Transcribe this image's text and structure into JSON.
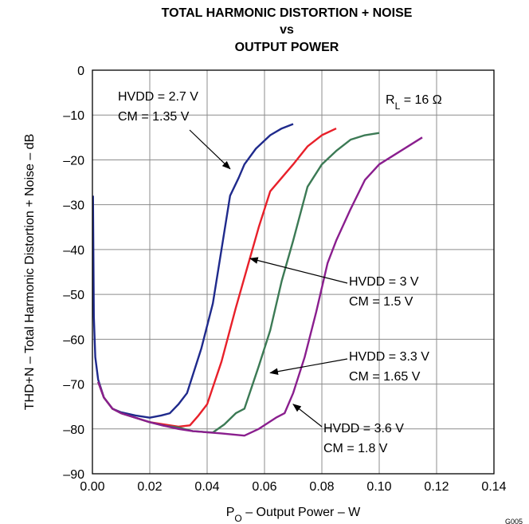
{
  "chart_data": {
    "type": "line",
    "title": [
      "TOTAL HARMONIC DISTORTION + NOISE",
      "vs",
      "OUTPUT POWER"
    ],
    "xlabel": {
      "main": "P",
      "sub": "O",
      "rest": " – Output Power – W"
    },
    "ylabel": "THD+N – Total Harmonic Distortion + Noise – dB",
    "xlim": [
      0,
      0.14
    ],
    "ylim": [
      -90,
      0
    ],
    "x_ticks": [
      0,
      0.02,
      0.04,
      0.06,
      0.08,
      0.1,
      0.12,
      0.14
    ],
    "x_tick_labels": [
      "0.00",
      "0.02",
      "0.04",
      "0.06",
      "0.08",
      "0.10",
      "0.12",
      "0.14"
    ],
    "y_ticks": [
      0,
      -10,
      -20,
      -30,
      -40,
      -50,
      -60,
      -70,
      -80,
      -90
    ],
    "y_tick_labels": [
      "0",
      "–10",
      "–20",
      "–30",
      "–40",
      "–50",
      "–60",
      "–70",
      "–80",
      "–90"
    ],
    "grid": true,
    "rl_label": {
      "main": "R",
      "sub": "L",
      "rest": " = 16 Ω"
    },
    "series": [
      {
        "name": "HVDD = 2.7 V, CM = 1.35 V",
        "color": "#1f2a8c",
        "points": [
          [
            0.0002,
            -28
          ],
          [
            0.0005,
            -55
          ],
          [
            0.001,
            -64
          ],
          [
            0.002,
            -69
          ],
          [
            0.004,
            -73
          ],
          [
            0.007,
            -75.5
          ],
          [
            0.01,
            -76.3
          ],
          [
            0.015,
            -77
          ],
          [
            0.02,
            -77.5
          ],
          [
            0.024,
            -77
          ],
          [
            0.027,
            -76.5
          ],
          [
            0.03,
            -74.5
          ],
          [
            0.033,
            -72
          ],
          [
            0.038,
            -62
          ],
          [
            0.042,
            -52
          ],
          [
            0.045,
            -40
          ],
          [
            0.048,
            -28
          ],
          [
            0.051,
            -24
          ],
          [
            0.053,
            -21
          ],
          [
            0.057,
            -17.5
          ],
          [
            0.062,
            -14.5
          ],
          [
            0.066,
            -13
          ],
          [
            0.07,
            -12
          ]
        ]
      },
      {
        "name": "HVDD = 3 V, CM = 1.5 V",
        "color": "#e8202a",
        "points": [
          [
            0.002,
            -69.5
          ],
          [
            0.004,
            -73
          ],
          [
            0.007,
            -75.5
          ],
          [
            0.01,
            -76.5
          ],
          [
            0.015,
            -77.5
          ],
          [
            0.02,
            -78.5
          ],
          [
            0.025,
            -79
          ],
          [
            0.03,
            -79.5
          ],
          [
            0.034,
            -79.2
          ],
          [
            0.037,
            -77
          ],
          [
            0.04,
            -74.5
          ],
          [
            0.045,
            -65
          ],
          [
            0.05,
            -53
          ],
          [
            0.054,
            -44
          ],
          [
            0.058,
            -35
          ],
          [
            0.062,
            -27
          ],
          [
            0.066,
            -24
          ],
          [
            0.07,
            -21
          ],
          [
            0.075,
            -17
          ],
          [
            0.08,
            -14.5
          ],
          [
            0.085,
            -13
          ]
        ]
      },
      {
        "name": "HVDD = 3.3 V, CM = 1.65 V",
        "color": "#3c7a55",
        "points": [
          [
            0.002,
            -69.5
          ],
          [
            0.004,
            -73
          ],
          [
            0.007,
            -75.5
          ],
          [
            0.01,
            -76.5
          ],
          [
            0.015,
            -77.5
          ],
          [
            0.02,
            -78.5
          ],
          [
            0.025,
            -79.3
          ],
          [
            0.03,
            -79.7
          ],
          [
            0.035,
            -80.5
          ],
          [
            0.042,
            -80.8
          ],
          [
            0.046,
            -79
          ],
          [
            0.05,
            -76.5
          ],
          [
            0.053,
            -75.5
          ],
          [
            0.058,
            -66
          ],
          [
            0.062,
            -58
          ],
          [
            0.066,
            -47
          ],
          [
            0.07,
            -38
          ],
          [
            0.075,
            -26
          ],
          [
            0.08,
            -21
          ],
          [
            0.085,
            -18
          ],
          [
            0.09,
            -15.5
          ],
          [
            0.095,
            -14.5
          ],
          [
            0.1,
            -14
          ]
        ]
      },
      {
        "name": "HVDD = 3.6 V, CM = 1.8 V",
        "color": "#8a1e8e",
        "points": [
          [
            0.002,
            -69.5
          ],
          [
            0.004,
            -73
          ],
          [
            0.007,
            -75.5
          ],
          [
            0.01,
            -76.5
          ],
          [
            0.015,
            -77.5
          ],
          [
            0.02,
            -78.5
          ],
          [
            0.025,
            -79.3
          ],
          [
            0.03,
            -80
          ],
          [
            0.035,
            -80.5
          ],
          [
            0.045,
            -81
          ],
          [
            0.053,
            -81.5
          ],
          [
            0.058,
            -80
          ],
          [
            0.064,
            -77.5
          ],
          [
            0.067,
            -76.5
          ],
          [
            0.07,
            -72
          ],
          [
            0.074,
            -64
          ],
          [
            0.078,
            -54
          ],
          [
            0.082,
            -43
          ],
          [
            0.085,
            -38
          ],
          [
            0.09,
            -31
          ],
          [
            0.095,
            -24.5
          ],
          [
            0.1,
            -21
          ],
          [
            0.105,
            -19
          ],
          [
            0.11,
            -17
          ],
          [
            0.115,
            -15
          ]
        ]
      }
    ],
    "annotations": [
      {
        "lines": [
          "HVDD = 2.7 V",
          "CM = 1.35 V"
        ],
        "arrow_to": [
          0.048,
          -22
        ]
      },
      {
        "lines": [
          "HVDD = 3 V",
          "CM = 1.5 V"
        ],
        "arrow_to": [
          0.055,
          -42
        ]
      },
      {
        "lines": [
          "HVDD = 3.3 V",
          "CM = 1.65 V"
        ],
        "arrow_to": [
          0.062,
          -67.5
        ]
      },
      {
        "lines": [
          "HVDD = 3.6 V",
          "CM = 1.8 V"
        ],
        "arrow_to": [
          0.07,
          -74.5
        ]
      }
    ],
    "footer_code": "G005"
  }
}
